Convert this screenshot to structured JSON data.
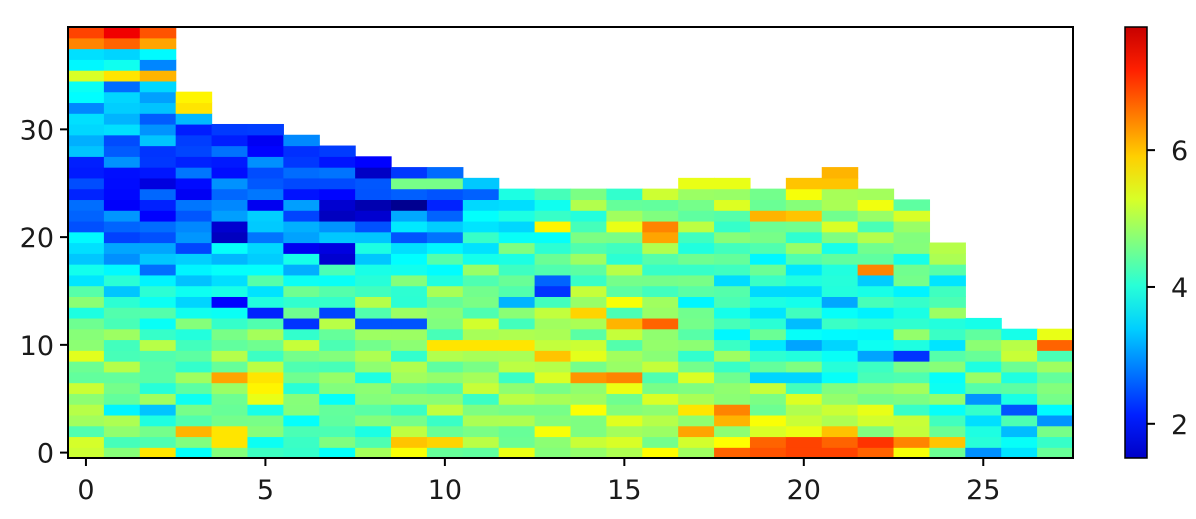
{
  "chart_data": {
    "type": "heatmap",
    "title": "",
    "xlabel": "",
    "ylabel": "",
    "xlim": [
      -0.5,
      27.5
    ],
    "ylim": [
      -0.5,
      39.5
    ],
    "x_ticks": [
      0,
      5,
      10,
      15,
      20,
      25
    ],
    "y_ticks": [
      0,
      10,
      20,
      30
    ],
    "x_tick_labels": [
      "0",
      "5",
      "10",
      "15",
      "20",
      "25"
    ],
    "y_tick_labels": [
      "0",
      "10",
      "20",
      "30"
    ],
    "colormap": "jet",
    "colorbar": {
      "vmin": 1.5,
      "vmax": 7.8,
      "ticks": [
        2,
        4,
        6
      ],
      "tick_labels": [
        "2",
        "4",
        "6"
      ]
    },
    "column_heights": [
      40,
      40,
      40,
      34,
      31,
      31,
      30,
      29,
      28,
      27,
      27,
      26,
      25,
      25,
      25,
      25,
      25,
      26,
      26,
      25,
      26,
      27,
      25,
      24,
      20,
      13,
      12,
      12
    ],
    "base_values": [
      [
        4.9,
        4.6,
        4.5,
        4.4,
        4.3,
        4.2,
        4.2,
        4.3,
        4.4,
        4.5,
        4.6,
        4.7,
        4.8,
        4.9,
        4.9,
        5.0,
        5.0,
        5.2,
        5.3,
        5.5,
        5.6,
        5.8,
        5.4,
        5.2,
        4.4,
        3.6,
        3.8,
        4.3
      ],
      [
        4.8,
        4.5,
        4.4,
        4.4,
        4.5,
        4.5,
        4.4,
        4.4,
        4.5,
        4.6,
        4.6,
        4.7,
        4.7,
        4.8,
        4.9,
        4.9,
        4.8,
        4.9,
        4.9,
        4.8,
        4.8,
        4.9,
        4.8,
        4.6,
        4.4,
        4.2,
        4.2,
        4.4
      ],
      [
        4.8,
        4.6,
        4.5,
        4.4,
        4.6,
        4.7,
        4.6,
        4.6,
        4.7,
        4.7,
        4.8,
        4.8,
        4.8,
        4.9,
        4.9,
        4.8,
        4.7,
        4.5,
        4.2,
        4.1,
        4.0,
        4.0,
        4.1,
        4.3,
        4.5,
        4.6,
        4.7,
        4.8
      ],
      [
        4.2,
        4.0,
        3.9,
        3.8,
        4.0,
        4.1,
        4.2,
        4.3,
        4.4,
        4.4,
        4.5,
        4.6,
        4.6,
        4.7,
        4.7,
        4.6,
        4.5,
        4.3,
        4.1,
        3.9,
        3.8,
        3.8,
        3.9,
        4.1,
        4.3,
        4.4,
        4.5,
        4.6
      ],
      [
        3.4,
        3.0,
        2.9,
        3.1,
        3.5,
        3.4,
        3.3,
        3.3,
        3.4,
        3.5,
        3.7,
        3.9,
        4.0,
        4.2,
        4.4,
        4.4,
        4.4,
        4.4,
        4.4,
        4.5,
        4.5,
        4.6,
        4.7,
        4.7,
        4.8,
        4.8,
        4.8,
        4.8
      ],
      [
        2.4,
        2.3,
        2.3,
        2.5,
        2.8,
        2.9,
        3.0,
        2.7,
        2.5,
        2.6,
        2.9,
        3.3,
        3.7,
        4.2,
        4.6,
        4.7,
        4.8,
        4.9,
        5.0,
        5.0,
        5.0,
        5.1,
        5.1,
        5.0,
        4.9,
        4.9,
        5.0,
        5.0
      ],
      [
        3.6,
        3.4,
        3.2,
        2.8,
        2.5,
        2.4,
        2.5,
        2.4,
        2.1,
        2.2,
        2.6,
        3.6,
        4.3,
        4.7,
        4.8,
        4.9,
        5.0,
        5.0,
        5.1,
        5.2,
        5.3,
        5.4,
        5.5,
        5.4,
        5.3,
        5.2,
        5.1,
        5.1
      ],
      [
        3.6,
        3.5,
        3.5,
        3.6,
        3.8,
        4.0,
        3.9,
        3.7,
        3.6,
        4.0,
        4.3,
        4.5,
        4.6,
        4.6,
        4.6,
        4.6,
        4.6,
        4.6,
        4.6,
        4.7,
        4.8,
        4.9,
        4.9,
        4.9,
        4.8,
        4.8,
        4.8,
        4.8
      ],
      [
        4.3,
        4.2,
        4.2,
        4.2,
        4.3,
        4.3,
        4.3,
        4.3,
        4.3,
        4.4,
        4.5,
        4.6,
        4.7,
        4.8,
        4.8,
        4.8,
        4.8,
        4.8,
        4.8,
        4.9,
        5.0,
        5.2,
        5.4,
        5.3,
        5.2,
        5.1,
        5.1,
        5.1
      ]
    ],
    "overrides": [
      [
        0,
        39,
        6.6
      ],
      [
        1,
        39,
        7.1
      ],
      [
        2,
        39,
        6.5
      ],
      [
        0,
        38,
        6.2
      ],
      [
        1,
        38,
        6.4
      ],
      [
        2,
        38,
        6.0
      ],
      [
        0,
        35,
        5.2
      ],
      [
        1,
        35,
        5.6
      ],
      [
        2,
        35,
        5.9
      ],
      [
        3,
        33,
        5.5
      ],
      [
        3,
        32,
        5.6
      ],
      [
        4,
        21,
        2.0
      ],
      [
        4,
        20,
        1.9
      ],
      [
        5,
        23,
        2.2
      ],
      [
        6,
        24,
        2.4
      ],
      [
        7,
        23,
        2.0
      ],
      [
        8,
        23,
        1.8
      ],
      [
        9,
        23,
        1.6
      ],
      [
        7,
        22,
        1.9
      ],
      [
        8,
        22,
        2.0
      ],
      [
        6,
        19,
        2.2
      ],
      [
        7,
        18,
        2.0
      ],
      [
        7,
        19,
        2.1
      ],
      [
        9,
        20,
        2.8
      ],
      [
        10,
        20,
        3.0
      ],
      [
        10,
        23,
        2.5
      ],
      [
        10,
        24,
        2.8
      ],
      [
        11,
        26,
        3.6
      ],
      [
        4,
        14,
        2.3
      ],
      [
        5,
        13,
        2.5
      ],
      [
        6,
        12,
        2.6
      ],
      [
        7,
        13,
        2.7
      ],
      [
        8,
        12,
        2.8
      ],
      [
        9,
        12,
        2.8
      ],
      [
        13,
        15,
        2.6
      ],
      [
        13,
        16,
        2.9
      ],
      [
        12,
        14,
        3.4
      ],
      [
        16,
        21,
        6.2
      ],
      [
        16,
        20,
        6.0
      ],
      [
        13,
        21,
        5.5
      ],
      [
        15,
        21,
        5.3
      ],
      [
        17,
        25,
        5.3
      ],
      [
        18,
        25,
        5.3
      ],
      [
        19,
        25,
        5.8
      ],
      [
        20,
        25,
        5.8
      ],
      [
        20,
        26,
        5.9
      ],
      [
        21,
        26,
        5.9
      ],
      [
        21,
        25,
        5.8
      ],
      [
        22,
        25,
        6.3
      ],
      [
        23,
        24,
        5.5
      ],
      [
        19,
        22,
        5.9
      ],
      [
        20,
        22,
        5.8
      ],
      [
        21,
        21,
        5.2
      ],
      [
        22,
        17,
        6.2
      ],
      [
        16,
        12,
        6.4
      ],
      [
        15,
        12,
        5.9
      ],
      [
        14,
        13,
        5.7
      ],
      [
        15,
        14,
        5.4
      ],
      [
        13,
        9,
        5.8
      ],
      [
        14,
        7,
        6.1
      ],
      [
        15,
        7,
        6.2
      ],
      [
        12,
        10,
        5.6
      ],
      [
        10,
        10,
        5.6
      ],
      [
        11,
        10,
        5.6
      ],
      [
        4,
        7,
        6.0
      ],
      [
        5,
        7,
        5.6
      ],
      [
        5,
        6,
        5.5
      ],
      [
        5,
        5,
        5.3
      ],
      [
        3,
        2,
        5.9
      ],
      [
        4,
        2,
        5.6
      ],
      [
        4,
        1,
        5.6
      ],
      [
        9,
        1,
        5.8
      ],
      [
        10,
        1,
        5.7
      ],
      [
        2,
        0,
        5.6
      ],
      [
        9,
        0,
        5.4
      ],
      [
        20,
        10,
        3.3
      ],
      [
        21,
        10,
        3.6
      ],
      [
        22,
        9,
        3.3
      ],
      [
        23,
        9,
        2.6
      ],
      [
        19,
        7,
        3.6
      ],
      [
        20,
        7,
        3.6
      ],
      [
        21,
        7,
        3.9
      ],
      [
        24,
        10,
        3.7
      ],
      [
        24,
        7,
        3.9
      ],
      [
        24,
        4,
        3.9
      ],
      [
        25,
        5,
        3.2
      ],
      [
        26,
        4,
        2.8
      ],
      [
        27,
        3,
        3.2
      ],
      [
        25,
        9,
        4.5
      ],
      [
        26,
        10,
        5.0
      ],
      [
        26,
        9,
        5.1
      ],
      [
        27,
        10,
        6.4
      ],
      [
        27,
        11,
        5.3
      ],
      [
        18,
        4,
        6.2
      ],
      [
        18,
        3,
        5.9
      ],
      [
        17,
        2,
        6.0
      ],
      [
        17,
        4,
        5.6
      ],
      [
        19,
        1,
        6.4
      ],
      [
        20,
        1,
        6.6
      ],
      [
        21,
        1,
        6.4
      ],
      [
        22,
        1,
        6.7
      ],
      [
        23,
        1,
        6.2
      ],
      [
        24,
        1,
        5.8
      ],
      [
        18,
        0,
        6.4
      ],
      [
        19,
        0,
        6.5
      ],
      [
        20,
        0,
        6.6
      ],
      [
        21,
        0,
        6.6
      ],
      [
        22,
        0,
        6.4
      ],
      [
        26,
        0,
        3.7
      ],
      [
        1,
        4,
        3.8
      ],
      [
        2,
        4,
        3.5
      ],
      [
        24,
        16,
        3.7
      ],
      [
        24,
        17,
        4.4
      ],
      [
        25,
        12,
        4.0
      ],
      [
        26,
        11,
        4.0
      ],
      [
        27,
        12,
        3.9
      ],
      [
        9,
        25,
        4.6
      ],
      [
        10,
        25,
        4.6
      ],
      [
        11,
        20,
        4.2
      ]
    ]
  }
}
